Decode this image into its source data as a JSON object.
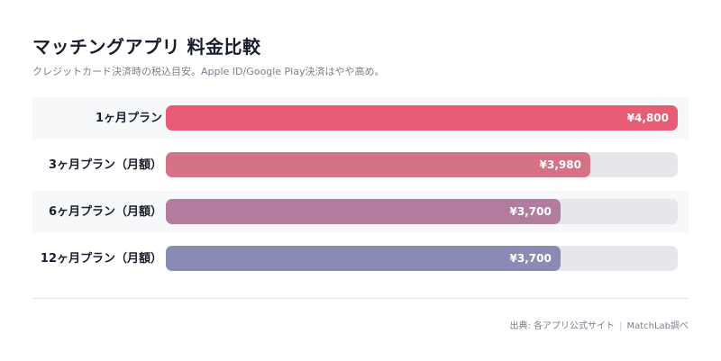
{
  "title": "マッチングアプリ 料金比較",
  "subtitle": "クレジットカード決済時の税込目安。Apple ID/Google Play決済はやや高め。",
  "footer": {
    "source": "出典: 各アプリ公式サイト",
    "separator": "|",
    "credit": "MatchLab調べ"
  },
  "colors": {
    "bar_1": "#e85d75",
    "bar_2": "#d67286",
    "bar_3": "#b27c9e",
    "bar_4": "#8a8bb5",
    "track": "#e6e7ea"
  },
  "chart_data": {
    "type": "bar",
    "orientation": "horizontal",
    "categories": [
      "1ヶ月プラン",
      "3ヶ月プラン（月額）",
      "6ヶ月プラン（月額）",
      "12ヶ月プラン（月額）"
    ],
    "values": [
      4800,
      3980,
      3700,
      3700
    ],
    "value_labels": [
      "¥4,800",
      "¥3,980",
      "¥3,700",
      "¥3,700"
    ],
    "xlim": [
      0,
      4800
    ],
    "grid": false,
    "legend": "none"
  }
}
